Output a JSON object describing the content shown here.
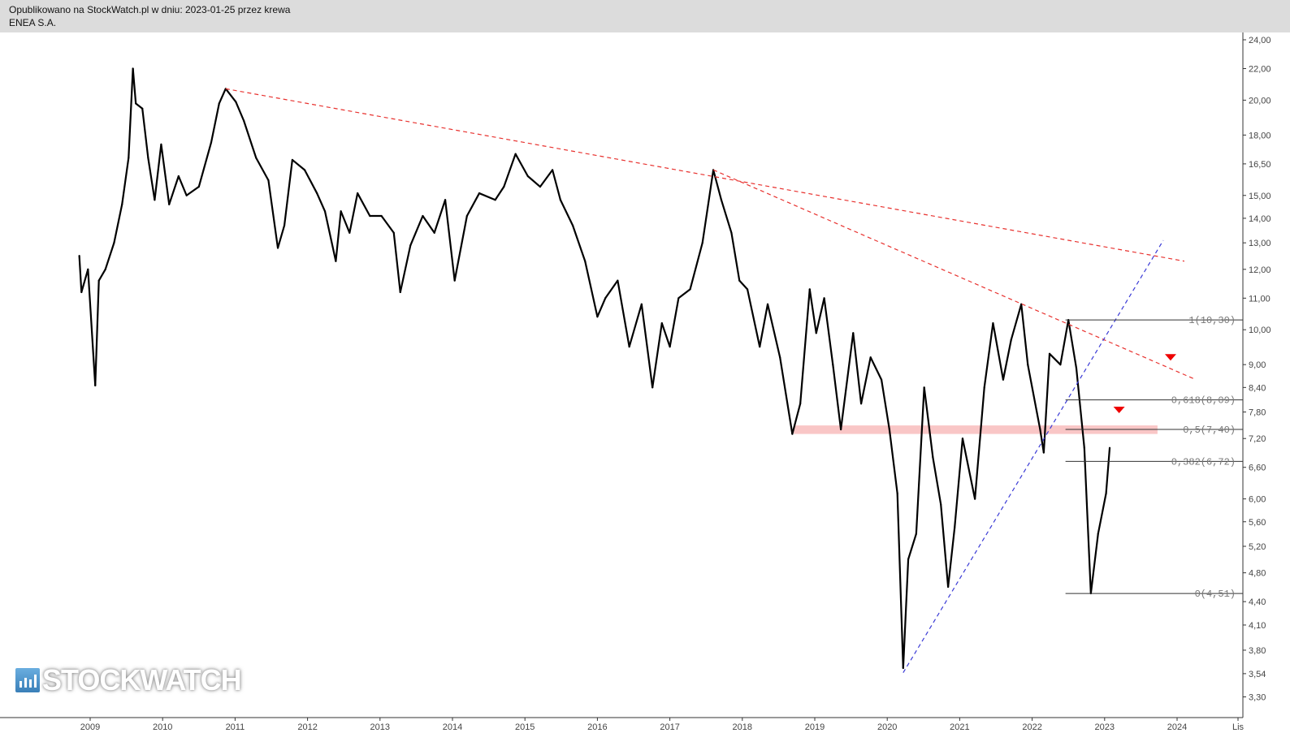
{
  "header": {
    "published": "Opublikowano na StockWatch.pl w dniu: 2023-01-25 przez krewa",
    "title": "ENEA S.A."
  },
  "logo": {
    "text": "STOCKWATCH"
  },
  "chart_data": {
    "type": "line",
    "title": "ENEA S.A.",
    "xlabel": "",
    "ylabel": "",
    "y_scale": "log",
    "grid": false,
    "xlim": [
      2008.8,
      2024.85
    ],
    "ylim": [
      3.2,
      25
    ],
    "x_ticks": [
      "2009",
      "2010",
      "2011",
      "2012",
      "2013",
      "2014",
      "2015",
      "2016",
      "2017",
      "2018",
      "2019",
      "2020",
      "2021",
      "2022",
      "2023",
      "2024",
      "Lis"
    ],
    "y_ticks": [
      "24,00",
      "22,00",
      "20,00",
      "18,00",
      "16,50",
      "15,00",
      "14,00",
      "13,00",
      "12,00",
      "11,00",
      "10,00",
      "9,00",
      "8,40",
      "7,80",
      "7,20",
      "6,60",
      "6,00",
      "5,60",
      "5,20",
      "4,80",
      "4,40",
      "4,10",
      "3,80",
      "3,54",
      "3,30"
    ],
    "y_tick_values": [
      24,
      22,
      20,
      18,
      16.5,
      15,
      14,
      13,
      12,
      11,
      10,
      9,
      8.4,
      7.8,
      7.2,
      6.6,
      6,
      5.6,
      5.2,
      4.8,
      4.4,
      4.1,
      3.8,
      3.54,
      3.3
    ],
    "price": [
      [
        2008.85,
        12.5
      ],
      [
        2008.88,
        11.2
      ],
      [
        2008.97,
        12.0
      ],
      [
        2009.07,
        8.45
      ],
      [
        2009.12,
        11.6
      ],
      [
        2009.21,
        12.0
      ],
      [
        2009.33,
        13.0
      ],
      [
        2009.44,
        14.6
      ],
      [
        2009.53,
        16.8
      ],
      [
        2009.59,
        22.0
      ],
      [
        2009.63,
        19.8
      ],
      [
        2009.72,
        19.5
      ],
      [
        2009.8,
        16.8
      ],
      [
        2009.89,
        14.8
      ],
      [
        2009.98,
        17.5
      ],
      [
        2010.09,
        14.6
      ],
      [
        2010.22,
        15.9
      ],
      [
        2010.33,
        15.0
      ],
      [
        2010.5,
        15.4
      ],
      [
        2010.67,
        17.6
      ],
      [
        2010.78,
        19.8
      ],
      [
        2010.87,
        20.7
      ],
      [
        2011.01,
        19.9
      ],
      [
        2011.12,
        18.8
      ],
      [
        2011.29,
        16.8
      ],
      [
        2011.46,
        15.7
      ],
      [
        2011.59,
        12.8
      ],
      [
        2011.68,
        13.7
      ],
      [
        2011.79,
        16.7
      ],
      [
        2011.96,
        16.2
      ],
      [
        2012.13,
        15.1
      ],
      [
        2012.24,
        14.3
      ],
      [
        2012.39,
        12.3
      ],
      [
        2012.46,
        14.3
      ],
      [
        2012.58,
        13.4
      ],
      [
        2012.69,
        15.1
      ],
      [
        2012.86,
        14.1
      ],
      [
        2013.02,
        14.1
      ],
      [
        2013.19,
        13.4
      ],
      [
        2013.28,
        11.2
      ],
      [
        2013.42,
        12.9
      ],
      [
        2013.59,
        14.1
      ],
      [
        2013.75,
        13.4
      ],
      [
        2013.9,
        14.8
      ],
      [
        2014.03,
        11.6
      ],
      [
        2014.2,
        14.1
      ],
      [
        2014.37,
        15.1
      ],
      [
        2014.59,
        14.8
      ],
      [
        2014.71,
        15.4
      ],
      [
        2014.87,
        17.0
      ],
      [
        2015.04,
        15.9
      ],
      [
        2015.21,
        15.4
      ],
      [
        2015.38,
        16.2
      ],
      [
        2015.49,
        14.8
      ],
      [
        2015.66,
        13.7
      ],
      [
        2015.83,
        12.3
      ],
      [
        2016.0,
        10.4
      ],
      [
        2016.11,
        11.0
      ],
      [
        2016.28,
        11.6
      ],
      [
        2016.44,
        9.5
      ],
      [
        2016.61,
        10.8
      ],
      [
        2016.76,
        8.4
      ],
      [
        2016.89,
        10.2
      ],
      [
        2017.0,
        9.5
      ],
      [
        2017.12,
        11.0
      ],
      [
        2017.28,
        11.3
      ],
      [
        2017.45,
        13.0
      ],
      [
        2017.6,
        16.2
      ],
      [
        2017.71,
        14.8
      ],
      [
        2017.85,
        13.4
      ],
      [
        2017.96,
        11.6
      ],
      [
        2018.07,
        11.3
      ],
      [
        2018.24,
        9.5
      ],
      [
        2018.35,
        10.8
      ],
      [
        2018.52,
        9.2
      ],
      [
        2018.69,
        7.3
      ],
      [
        2018.8,
        8.0
      ],
      [
        2018.93,
        11.3
      ],
      [
        2019.02,
        9.9
      ],
      [
        2019.13,
        11.0
      ],
      [
        2019.25,
        9.0
      ],
      [
        2019.36,
        7.4
      ],
      [
        2019.53,
        9.9
      ],
      [
        2019.64,
        8.0
      ],
      [
        2019.77,
        9.2
      ],
      [
        2019.92,
        8.6
      ],
      [
        2020.03,
        7.4
      ],
      [
        2020.14,
        6.1
      ],
      [
        2020.22,
        3.6
      ],
      [
        2020.29,
        5.0
      ],
      [
        2020.4,
        5.4
      ],
      [
        2020.51,
        8.4
      ],
      [
        2020.63,
        6.8
      ],
      [
        2020.74,
        5.9
      ],
      [
        2020.84,
        4.6
      ],
      [
        2020.93,
        5.5
      ],
      [
        2021.04,
        7.2
      ],
      [
        2021.21,
        6.0
      ],
      [
        2021.34,
        8.4
      ],
      [
        2021.46,
        10.2
      ],
      [
        2021.6,
        8.6
      ],
      [
        2021.71,
        9.7
      ],
      [
        2021.85,
        10.8
      ],
      [
        2021.94,
        9.0
      ],
      [
        2022.11,
        7.4
      ],
      [
        2022.16,
        6.9
      ],
      [
        2022.24,
        9.3
      ],
      [
        2022.39,
        9.0
      ],
      [
        2022.5,
        10.3
      ],
      [
        2022.61,
        8.9
      ],
      [
        2022.72,
        7.0
      ],
      [
        2022.81,
        4.51
      ],
      [
        2022.91,
        5.4
      ],
      [
        2023.02,
        6.1
      ],
      [
        2023.07,
        7.0
      ]
    ],
    "trendlines": [
      {
        "from": [
          2010.87,
          20.7
        ],
        "to": [
          2024.1,
          12.3
        ],
        "color": "#e8322f",
        "style": "dashed"
      },
      {
        "from": [
          2017.6,
          16.2
        ],
        "to": [
          2024.26,
          8.6
        ],
        "color": "#e8322f",
        "style": "dashed"
      },
      {
        "from": [
          2020.22,
          3.55
        ],
        "to": [
          2023.81,
          13.1
        ],
        "color": "#3b3bd6",
        "style": "dashed"
      }
    ],
    "fibonacci": {
      "start": 2022.46,
      "levels": [
        {
          "label": "1(10,30)",
          "value": 10.3
        },
        {
          "label": "0,618(8,09)",
          "value": 8.09
        },
        {
          "label": "0,5(7,40)",
          "value": 7.4
        },
        {
          "label": "0,382(6,72)",
          "value": 6.72
        },
        {
          "label": "0(4,51)",
          "value": 4.51
        }
      ]
    },
    "support_zone": {
      "from": 2018.71,
      "to": 2023.73,
      "low": 7.3,
      "high": 7.49,
      "color": "#f9c6c6"
    },
    "markers": [
      {
        "shape": "triangle-down",
        "x": 2023.91,
        "y": 9.2,
        "color": "#ee0000"
      },
      {
        "shape": "triangle-down",
        "x": 2023.2,
        "y": 7.85,
        "color": "#ee0000"
      }
    ]
  }
}
